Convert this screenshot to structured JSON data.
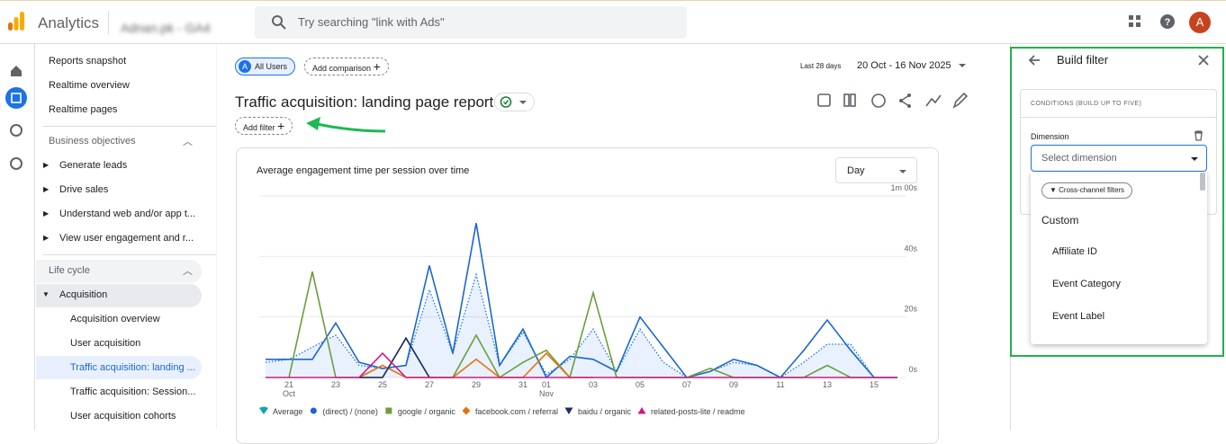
{
  "header": {
    "product": "Analytics",
    "account": "Adnan.pk - GA4",
    "search_placeholder": "Try searching \"link with Ads\"",
    "avatar": "A"
  },
  "nav": {
    "top": [
      "Reports snapshot",
      "Realtime overview",
      "Realtime pages"
    ],
    "business": {
      "title": "Business objectives",
      "items": [
        "Generate leads",
        "Drive sales",
        "Understand web and/or app t...",
        "View user engagement and r..."
      ]
    },
    "lifecycle": {
      "title": "Life cycle",
      "group": "Acquisition",
      "items": [
        "Acquisition overview",
        "User acquisition",
        "Traffic acquisition: landing ...",
        "Traffic acquisition: Session...",
        "User acquisition cohorts"
      ],
      "selected": 2
    }
  },
  "report": {
    "segment_badge": "A",
    "segment": "All Users",
    "add_comparison": "Add comparison",
    "range_label": "Last 28 days",
    "range": "20 Oct - 16 Nov 2025",
    "title": "Traffic acquisition: landing page report",
    "add_filter": "Add filter",
    "chart": {
      "type": "line",
      "title": "Average engagement time per session over time",
      "interval": "Day",
      "categories": [
        null,
        "21 Oct",
        null,
        "23",
        null,
        "25",
        null,
        "27",
        null,
        "29",
        null,
        "31",
        "01 Nov",
        null,
        "03",
        null,
        "05",
        null,
        "07",
        null,
        "09",
        null,
        "11",
        null,
        "13",
        null,
        "15",
        null
      ],
      "ylim": [
        0,
        60
      ],
      "yticks": [
        {
          "value": 0,
          "label": "0s"
        },
        {
          "value": 20,
          "label": "20s"
        },
        {
          "value": 40,
          "label": "40s"
        },
        {
          "value": 60,
          "label": "1m 00s"
        }
      ],
      "grid": true,
      "series": [
        {
          "name": "Average",
          "color": "#1a73e8",
          "marker": "pin",
          "style": "dotted-area",
          "values": [
            5,
            6,
            10,
            14,
            4,
            3,
            4,
            29,
            8,
            34,
            4,
            15,
            1,
            6,
            16,
            2,
            16,
            5,
            0,
            2,
            5,
            4,
            0,
            5,
            11,
            11,
            0,
            0
          ]
        },
        {
          "name": "(direct) / (none)",
          "color": "#1967d2",
          "marker": "circle",
          "values": [
            6,
            6,
            6,
            18,
            5,
            3,
            4,
            37,
            8,
            51,
            4,
            16,
            0,
            7,
            6,
            2,
            20,
            10,
            0,
            2,
            6,
            4,
            0,
            9,
            19,
            9,
            0,
            0
          ]
        },
        {
          "name": "google / organic",
          "color": "#6a9f3a",
          "marker": "square",
          "values": [
            null,
            0,
            35,
            0,
            0,
            0,
            13,
            0,
            0,
            14,
            0,
            5,
            9,
            0,
            28,
            0,
            0,
            0,
            0,
            3,
            0,
            0,
            0,
            0,
            4,
            0,
            0,
            null
          ]
        },
        {
          "name": "facebook.com / referral",
          "color": "#e8710a",
          "marker": "diamond",
          "values": [
            null,
            null,
            null,
            null,
            0,
            4,
            0,
            0,
            0,
            6,
            0,
            0,
            8,
            0,
            0,
            null,
            null,
            null,
            null,
            null,
            null,
            null,
            null,
            null,
            null,
            null,
            null,
            null
          ]
        },
        {
          "name": "baidu / organic",
          "color": "#1f2a6b",
          "marker": "triangle-down",
          "values": [
            null,
            null,
            null,
            null,
            0,
            0,
            13,
            0,
            null,
            null,
            null,
            null,
            null,
            null,
            null,
            null,
            null,
            null,
            null,
            null,
            null,
            null,
            null,
            null,
            null,
            null,
            null,
            null
          ]
        },
        {
          "name": "related-posts-lite / readme",
          "color": "#d01884",
          "marker": "triangle-up",
          "values": [
            0,
            0,
            0,
            0,
            0,
            8,
            0,
            0,
            0,
            0,
            0,
            0,
            0,
            0,
            0,
            0,
            0,
            0,
            0,
            0,
            0,
            0,
            0,
            0,
            0,
            0,
            0,
            0
          ]
        }
      ]
    }
  },
  "filter_panel": {
    "title": "Build filter",
    "conditions": "CONDITIONS (BUILD UP TO FIVE)",
    "dimension_label": "Dimension",
    "dimension_placeholder": "Select dimension",
    "chip": "Cross-channel filters",
    "group": "Custom",
    "options": [
      "Affiliate ID",
      "Event Category",
      "Event Label"
    ]
  }
}
